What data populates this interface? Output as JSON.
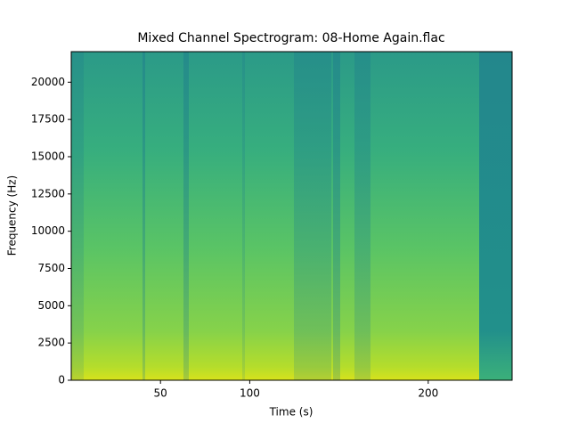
{
  "chart_data": {
    "type": "spectrogram",
    "title": "Mixed Channel Spectrogram: 08-Home Again.flac",
    "x_label": "Time (s)",
    "y_label": "Frequency (Hz)",
    "xlim": [
      0,
      247
    ],
    "xticks": [
      50,
      100,
      200
    ],
    "ylim": [
      0,
      22050
    ],
    "yticks": [
      0,
      2500,
      5000,
      7500,
      10000,
      12500,
      15000,
      17500,
      20000
    ]
  }
}
